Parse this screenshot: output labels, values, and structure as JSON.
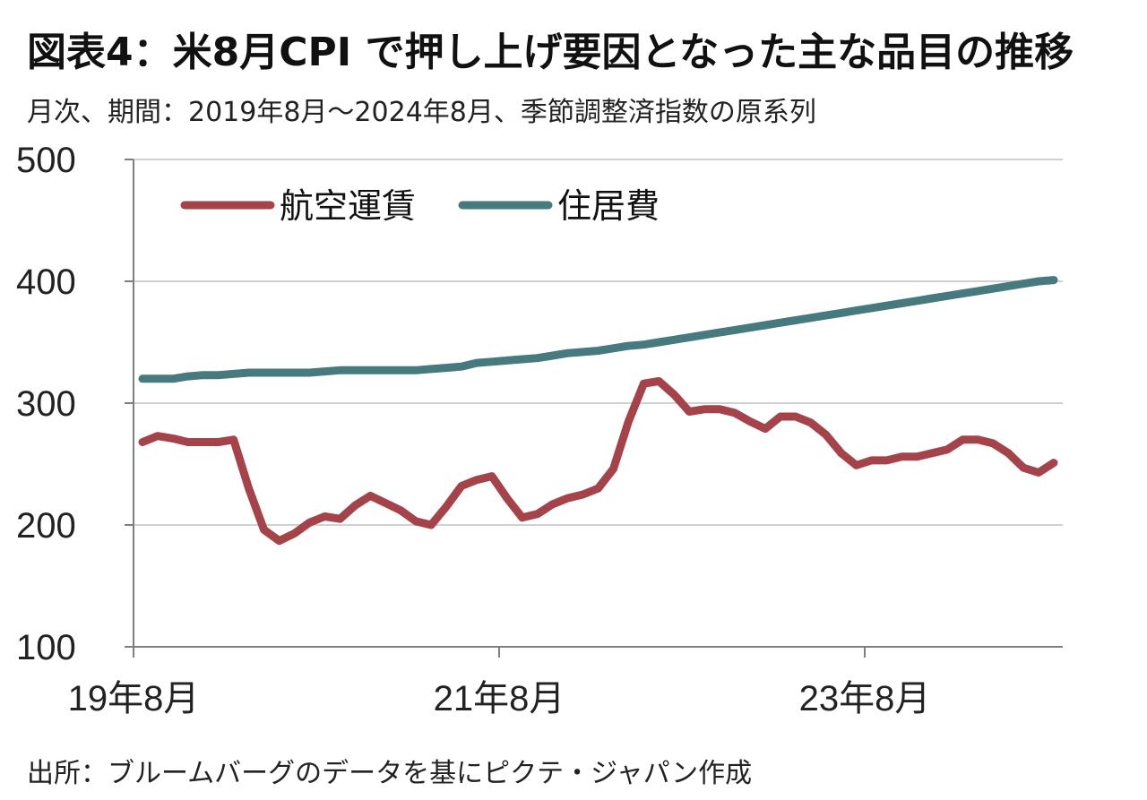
{
  "title": "図表4：米8月CPI で押し上げ要因となった主な品目の推移",
  "subtitle": "月次、期間：2019年8月～2024年8月、季節調整済指数の原系列",
  "source": "出所：ブルームバーグのデータを基にピクテ・ジャパン作成",
  "chart_data": {
    "type": "line",
    "title": "図表4：米8月CPI で押し上げ要因となった主な品目の推移",
    "subtitle": "月次、期間：2019年8月～2024年8月、季節調整済指数の原系列",
    "xlabel": "",
    "ylabel": "",
    "ylim": [
      100,
      500
    ],
    "yticks": [
      "500",
      "400",
      "300",
      "200",
      "100"
    ],
    "xticks": [
      "19年8月",
      "21年8月",
      "23年8月"
    ],
    "grid": "horizontal",
    "legend_position": "top-left",
    "x": [
      "2019-08",
      "2019-09",
      "2019-10",
      "2019-11",
      "2019-12",
      "2020-01",
      "2020-02",
      "2020-03",
      "2020-04",
      "2020-05",
      "2020-06",
      "2020-07",
      "2020-08",
      "2020-09",
      "2020-10",
      "2020-11",
      "2020-12",
      "2021-01",
      "2021-02",
      "2021-03",
      "2021-04",
      "2021-05",
      "2021-06",
      "2021-07",
      "2021-08",
      "2021-09",
      "2021-10",
      "2021-11",
      "2021-12",
      "2022-01",
      "2022-02",
      "2022-03",
      "2022-04",
      "2022-05",
      "2022-06",
      "2022-07",
      "2022-08",
      "2022-09",
      "2022-10",
      "2022-11",
      "2022-12",
      "2023-01",
      "2023-02",
      "2023-03",
      "2023-04",
      "2023-05",
      "2023-06",
      "2023-07",
      "2023-08",
      "2023-09",
      "2023-10",
      "2023-11",
      "2023-12",
      "2024-01",
      "2024-02",
      "2024-03",
      "2024-04",
      "2024-05",
      "2024-06",
      "2024-07",
      "2024-08"
    ],
    "series": [
      {
        "name": "航空運賃",
        "color": "#a5434a",
        "values": [
          268,
          273,
          271,
          268,
          268,
          268,
          270,
          230,
          196,
          187,
          193,
          202,
          207,
          205,
          216,
          224,
          218,
          212,
          203,
          200,
          215,
          232,
          237,
          240,
          222,
          206,
          209,
          217,
          222,
          225,
          230,
          246,
          285,
          316,
          318,
          307,
          293,
          295,
          295,
          292,
          285,
          279,
          289,
          289,
          284,
          274,
          259,
          249,
          253,
          253,
          256,
          256,
          259,
          262,
          270,
          270,
          267,
          259,
          247,
          243,
          251
        ],
        "values_note": "",
        "label": "航空運賃"
      },
      {
        "name": "住居費",
        "color": "#467a7e",
        "values": [
          320,
          320,
          320,
          322,
          323,
          323,
          324,
          325,
          325,
          325,
          325,
          325,
          326,
          327,
          327,
          327,
          327,
          327,
          327,
          328,
          329,
          330,
          333,
          334,
          335,
          336,
          337,
          339,
          341,
          342,
          343,
          345,
          347,
          348,
          350,
          352,
          354,
          356,
          358,
          360,
          362,
          364,
          366,
          368,
          370,
          372,
          374,
          376,
          378,
          380,
          382,
          384,
          386,
          388,
          390,
          392,
          394,
          396,
          398,
          400,
          401
        ],
        "label": "住居費"
      }
    ]
  }
}
